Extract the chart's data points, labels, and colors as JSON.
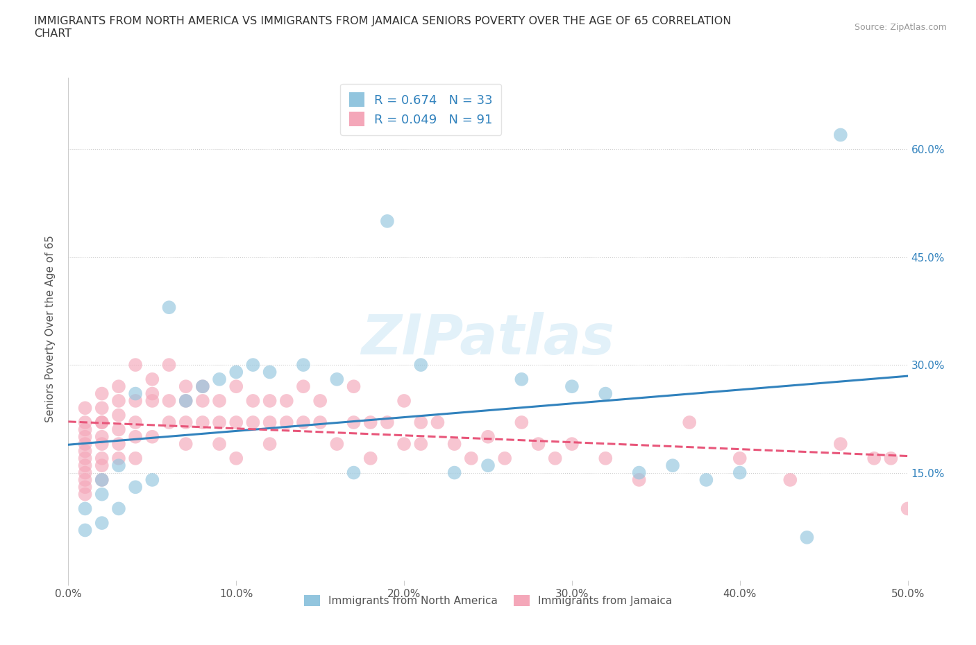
{
  "title": "IMMIGRANTS FROM NORTH AMERICA VS IMMIGRANTS FROM JAMAICA SENIORS POVERTY OVER THE AGE OF 65 CORRELATION\nCHART",
  "source": "Source: ZipAtlas.com",
  "ylabel": "Seniors Poverty Over the Age of 65",
  "xmin": 0.0,
  "xmax": 0.5,
  "ymin": 0.0,
  "ymax": 0.7,
  "xticks": [
    0.0,
    0.1,
    0.2,
    0.3,
    0.4,
    0.5
  ],
  "xtick_labels": [
    "0.0%",
    "10.0%",
    "20.0%",
    "30.0%",
    "40.0%",
    "50.0%"
  ],
  "yticks": [
    0.15,
    0.3,
    0.45,
    0.6
  ],
  "ytick_labels": [
    "15.0%",
    "30.0%",
    "45.0%",
    "60.0%"
  ],
  "color_blue": "#92c5de",
  "color_pink": "#f4a7b9",
  "color_line_blue": "#3182bd",
  "color_line_pink": "#e8567a",
  "R_blue": 0.674,
  "N_blue": 33,
  "R_pink": 0.049,
  "N_pink": 91,
  "watermark": "ZIPatlas",
  "legend_label_blue": "Immigrants from North America",
  "legend_label_pink": "Immigrants from Jamaica",
  "north_america_x": [
    0.01,
    0.01,
    0.02,
    0.02,
    0.02,
    0.03,
    0.03,
    0.04,
    0.04,
    0.05,
    0.06,
    0.07,
    0.08,
    0.09,
    0.1,
    0.11,
    0.12,
    0.14,
    0.16,
    0.17,
    0.19,
    0.21,
    0.23,
    0.25,
    0.27,
    0.3,
    0.32,
    0.34,
    0.36,
    0.38,
    0.4,
    0.44,
    0.46
  ],
  "north_america_y": [
    0.07,
    0.1,
    0.08,
    0.12,
    0.14,
    0.1,
    0.16,
    0.13,
    0.26,
    0.14,
    0.38,
    0.25,
    0.27,
    0.28,
    0.29,
    0.3,
    0.29,
    0.3,
    0.28,
    0.15,
    0.5,
    0.3,
    0.15,
    0.16,
    0.28,
    0.27,
    0.26,
    0.15,
    0.16,
    0.14,
    0.15,
    0.06,
    0.62
  ],
  "jamaica_x": [
    0.01,
    0.01,
    0.01,
    0.01,
    0.01,
    0.01,
    0.01,
    0.01,
    0.01,
    0.01,
    0.01,
    0.01,
    0.02,
    0.02,
    0.02,
    0.02,
    0.02,
    0.02,
    0.02,
    0.02,
    0.02,
    0.03,
    0.03,
    0.03,
    0.03,
    0.03,
    0.03,
    0.04,
    0.04,
    0.04,
    0.04,
    0.04,
    0.05,
    0.05,
    0.05,
    0.05,
    0.06,
    0.06,
    0.06,
    0.07,
    0.07,
    0.07,
    0.07,
    0.08,
    0.08,
    0.08,
    0.09,
    0.09,
    0.09,
    0.1,
    0.1,
    0.1,
    0.11,
    0.11,
    0.12,
    0.12,
    0.12,
    0.13,
    0.13,
    0.14,
    0.14,
    0.15,
    0.15,
    0.16,
    0.17,
    0.17,
    0.18,
    0.18,
    0.19,
    0.2,
    0.2,
    0.21,
    0.21,
    0.22,
    0.23,
    0.24,
    0.25,
    0.26,
    0.27,
    0.28,
    0.29,
    0.3,
    0.32,
    0.34,
    0.37,
    0.4,
    0.43,
    0.46,
    0.48,
    0.49,
    0.5
  ],
  "jamaica_y": [
    0.17,
    0.19,
    0.21,
    0.22,
    0.16,
    0.14,
    0.13,
    0.18,
    0.2,
    0.24,
    0.15,
    0.12,
    0.17,
    0.2,
    0.22,
    0.19,
    0.16,
    0.24,
    0.14,
    0.22,
    0.26,
    0.21,
    0.25,
    0.17,
    0.19,
    0.23,
    0.27,
    0.2,
    0.17,
    0.25,
    0.3,
    0.22,
    0.26,
    0.2,
    0.25,
    0.28,
    0.25,
    0.22,
    0.3,
    0.25,
    0.22,
    0.27,
    0.19,
    0.25,
    0.22,
    0.27,
    0.22,
    0.25,
    0.19,
    0.27,
    0.22,
    0.17,
    0.22,
    0.25,
    0.25,
    0.22,
    0.19,
    0.22,
    0.25,
    0.22,
    0.27,
    0.22,
    0.25,
    0.19,
    0.22,
    0.27,
    0.22,
    0.17,
    0.22,
    0.25,
    0.19,
    0.22,
    0.19,
    0.22,
    0.19,
    0.17,
    0.2,
    0.17,
    0.22,
    0.19,
    0.17,
    0.19,
    0.17,
    0.14,
    0.22,
    0.17,
    0.14,
    0.19,
    0.17,
    0.17,
    0.1
  ]
}
